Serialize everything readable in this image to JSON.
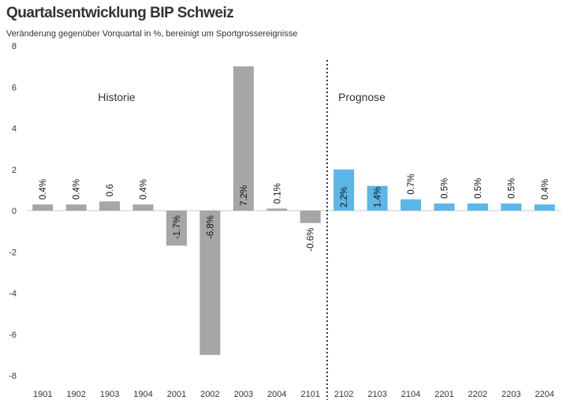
{
  "title": "Quartalsentwicklung BIP Schweiz",
  "subtitle": "Veränderung gegenüber Vorquartal in %, bereinigt um Sportgrossereignisse",
  "chart_data": {
    "type": "bar",
    "categories": [
      "1901",
      "1902",
      "1903",
      "1904",
      "2001",
      "2002",
      "2003",
      "2004",
      "2101",
      "2102",
      "2103",
      "2104",
      "2201",
      "2202",
      "2203",
      "2204"
    ],
    "values": [
      0.4,
      0.4,
      0.6,
      0.4,
      -1.7,
      -6.8,
      7.2,
      0.1,
      -0.6,
      2.2,
      1.4,
      0.7,
      0.5,
      0.5,
      0.5,
      0.4
    ],
    "data_labels": [
      "0.4%",
      "0.4%",
      "0.6",
      "0.4%",
      "-1.7%",
      "-6.8%",
      "7.2%",
      "0.1%",
      "-0.6%",
      "2.2%",
      "1.4%",
      "0.7%",
      "0.5%",
      "0.5%",
      "0.5%",
      "0.4%"
    ],
    "bar_values": [
      0.3,
      0.3,
      0.45,
      0.3,
      -1.7,
      -7.0,
      7.0,
      0.1,
      -0.6,
      2.0,
      1.2,
      0.55,
      0.35,
      0.35,
      0.35,
      0.3
    ],
    "segments": [
      {
        "label": "Historie",
        "from": 0,
        "to": 8,
        "color": "#a6a6a6"
      },
      {
        "label": "Prognose",
        "from": 9,
        "to": 15,
        "color": "#5cb6e8"
      }
    ],
    "ylim": [
      -8,
      8
    ],
    "yticks": [
      -8,
      -6,
      -4,
      -2,
      0,
      2,
      4,
      6,
      8
    ],
    "xlabel": "",
    "ylabel": "",
    "grid": false,
    "divider_after_category": "2101"
  }
}
